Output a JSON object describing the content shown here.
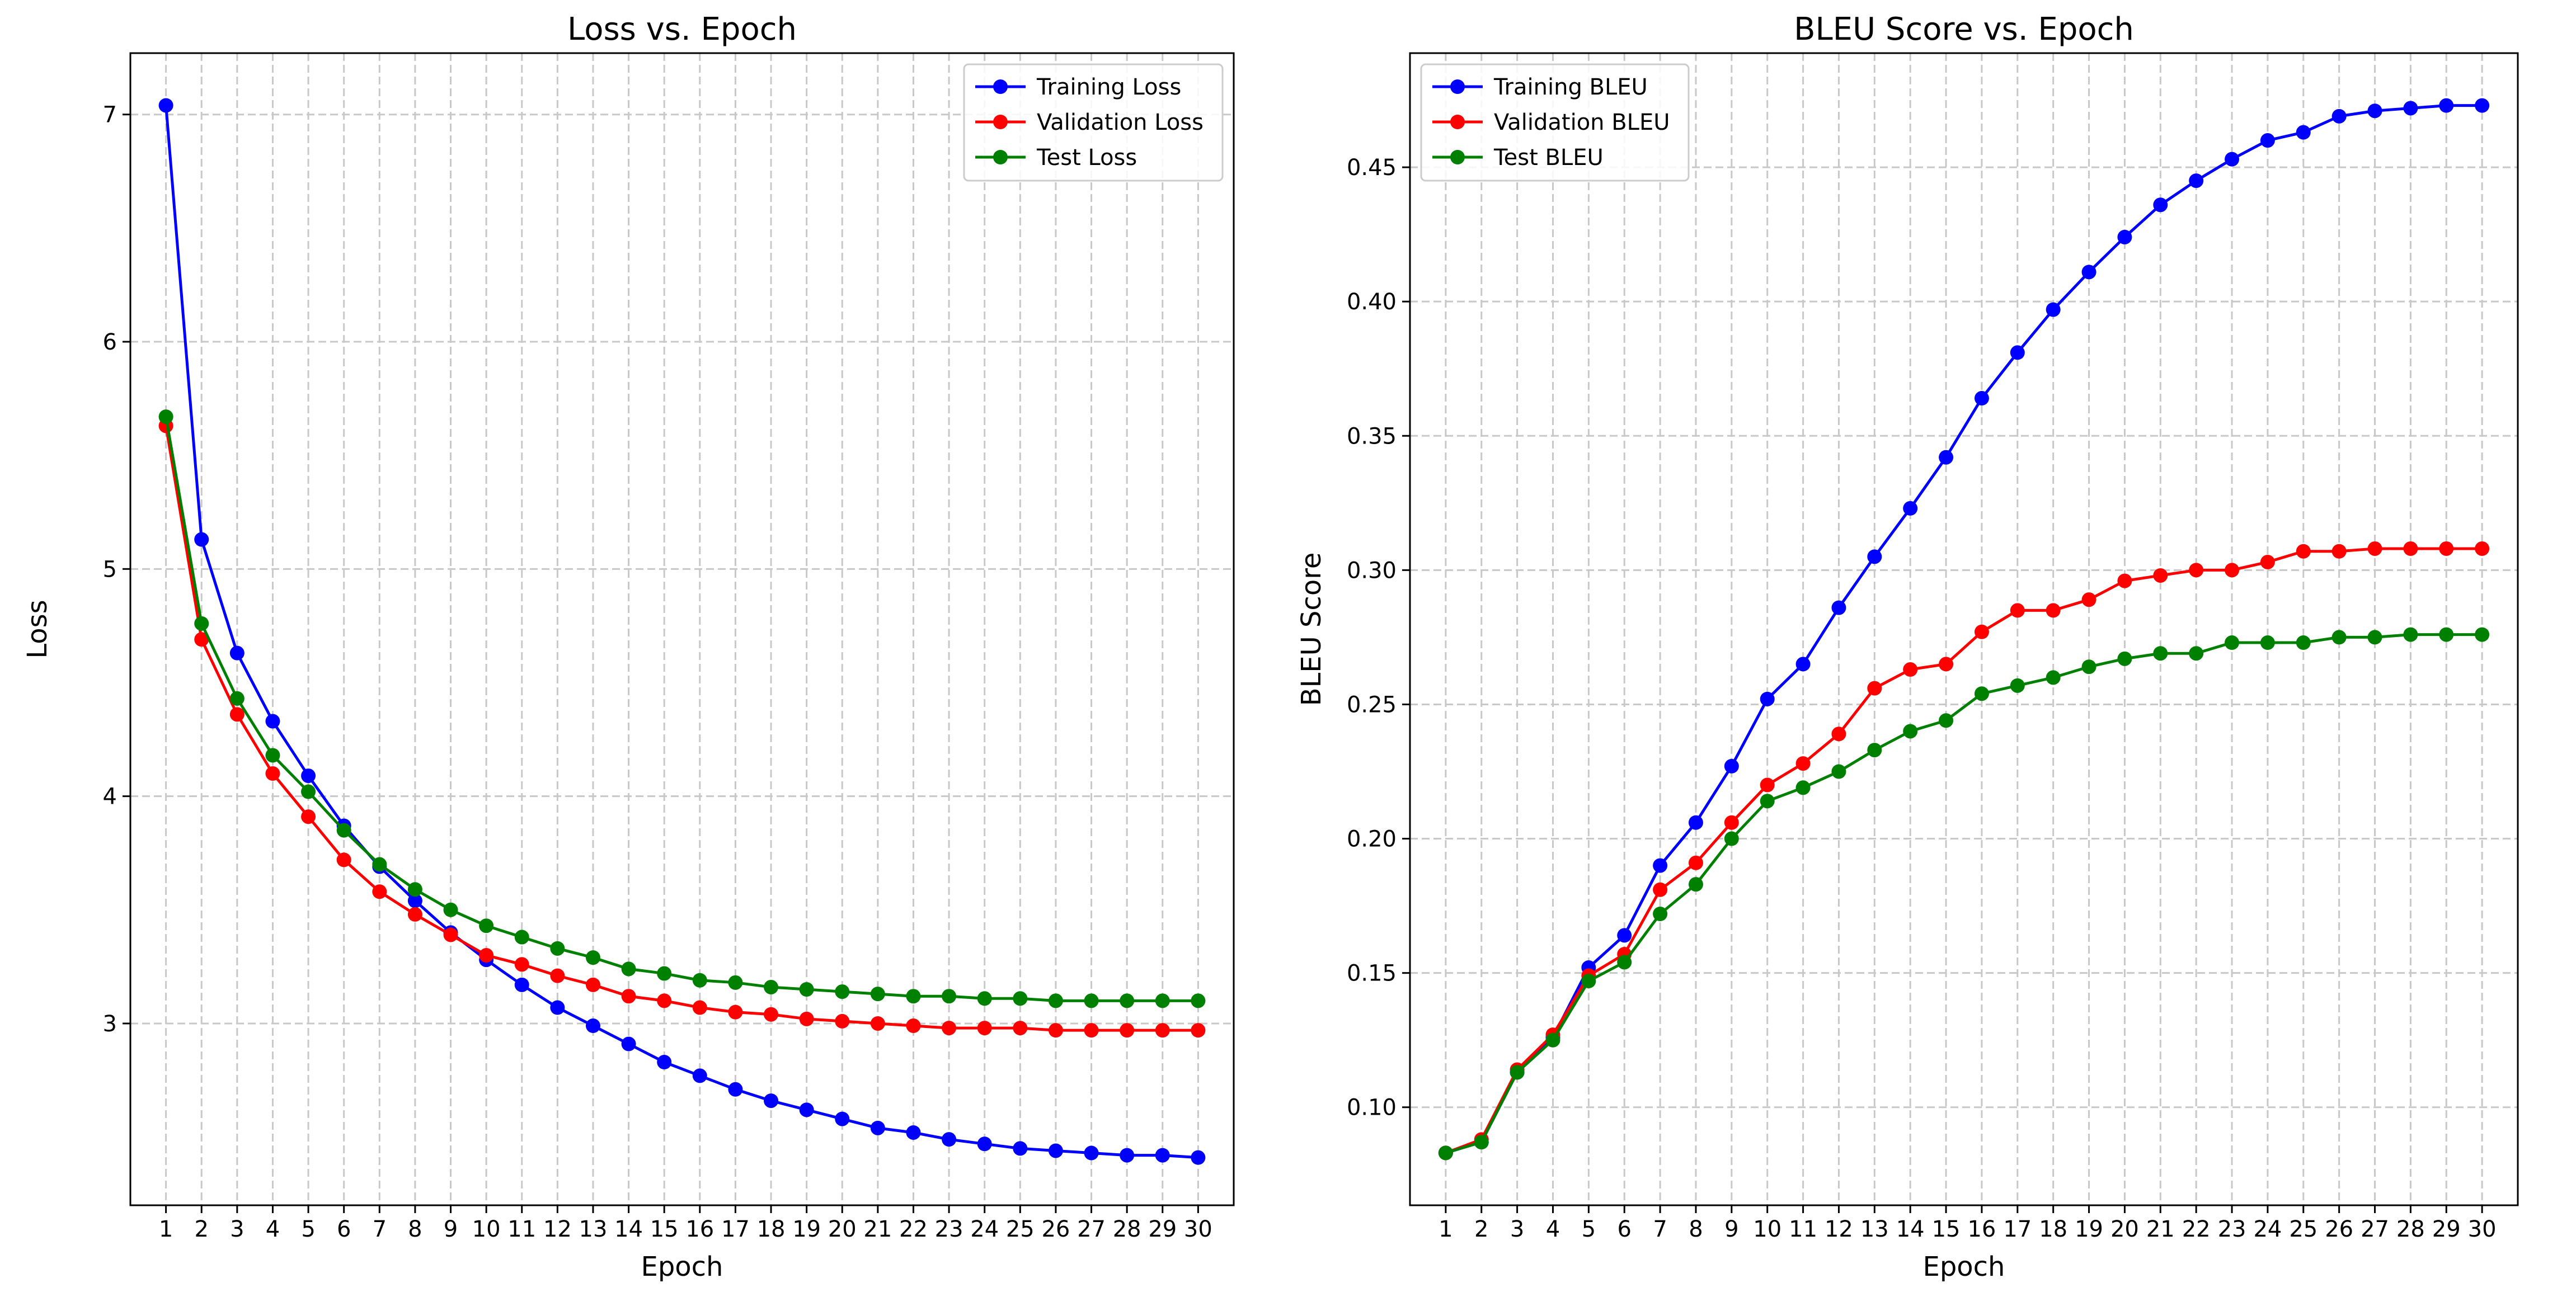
{
  "chart_data": [
    {
      "type": "line",
      "title": "Loss vs. Epoch",
      "xlabel": "Epoch",
      "ylabel": "Loss",
      "x": [
        1,
        2,
        3,
        4,
        5,
        6,
        7,
        8,
        9,
        10,
        11,
        12,
        13,
        14,
        15,
        16,
        17,
        18,
        19,
        20,
        21,
        22,
        23,
        24,
        25,
        26,
        27,
        28,
        29,
        30
      ],
      "xlim": [
        0,
        31
      ],
      "ylim": [
        2.2,
        7.27
      ],
      "yticks": [
        3,
        4,
        5,
        6,
        7
      ],
      "ytick_labels": [
        "3",
        "4",
        "5",
        "6",
        "7"
      ],
      "grid": true,
      "legend": "top-right",
      "series": [
        {
          "name": "Training Loss",
          "color": "#0000ff",
          "values": [
            7.04,
            5.13,
            4.63,
            4.33,
            4.09,
            3.87,
            3.69,
            3.54,
            3.4,
            3.28,
            3.17,
            3.07,
            2.99,
            2.91,
            2.83,
            2.77,
            2.71,
            2.66,
            2.62,
            2.58,
            2.54,
            2.52,
            2.49,
            2.47,
            2.45,
            2.44,
            2.43,
            2.42,
            2.42,
            2.41
          ]
        },
        {
          "name": "Validation Loss",
          "color": "#ff0000",
          "values": [
            5.63,
            4.69,
            4.36,
            4.1,
            3.91,
            3.72,
            3.58,
            3.48,
            3.39,
            3.3,
            3.26,
            3.21,
            3.17,
            3.12,
            3.1,
            3.07,
            3.05,
            3.04,
            3.02,
            3.01,
            3.0,
            2.99,
            2.98,
            2.98,
            2.98,
            2.97,
            2.97,
            2.97,
            2.97,
            2.97
          ]
        },
        {
          "name": "Test Loss",
          "color": "#008000",
          "values": [
            5.67,
            4.76,
            4.43,
            4.18,
            4.02,
            3.85,
            3.7,
            3.59,
            3.5,
            3.43,
            3.38,
            3.33,
            3.29,
            3.24,
            3.22,
            3.19,
            3.18,
            3.16,
            3.15,
            3.14,
            3.13,
            3.12,
            3.12,
            3.11,
            3.11,
            3.1,
            3.1,
            3.1,
            3.1,
            3.1
          ]
        }
      ]
    },
    {
      "type": "line",
      "title": "BLEU Score vs. Epoch",
      "xlabel": "Epoch",
      "ylabel": "BLEU Score",
      "x": [
        1,
        2,
        3,
        4,
        5,
        6,
        7,
        8,
        9,
        10,
        11,
        12,
        13,
        14,
        15,
        16,
        17,
        18,
        19,
        20,
        21,
        22,
        23,
        24,
        25,
        26,
        27,
        28,
        29,
        30
      ],
      "xlim": [
        0,
        31
      ],
      "ylim": [
        0.0635,
        0.4925
      ],
      "yticks": [
        0.1,
        0.15,
        0.2,
        0.25,
        0.3,
        0.35,
        0.4,
        0.45
      ],
      "ytick_labels": [
        "0.10",
        "0.15",
        "0.20",
        "0.25",
        "0.30",
        "0.35",
        "0.40",
        "0.45"
      ],
      "grid": true,
      "legend": "top-left",
      "series": [
        {
          "name": "Training BLEU",
          "color": "#0000ff",
          "values": [
            0.083,
            0.087,
            0.113,
            0.126,
            0.152,
            0.164,
            0.19,
            0.206,
            0.227,
            0.252,
            0.265,
            0.286,
            0.305,
            0.323,
            0.342,
            0.364,
            0.381,
            0.397,
            0.411,
            0.424,
            0.436,
            0.445,
            0.453,
            0.46,
            0.463,
            0.469,
            0.471,
            0.472,
            0.473,
            0.473
          ]
        },
        {
          "name": "Validation BLEU",
          "color": "#ff0000",
          "values": [
            0.083,
            0.088,
            0.114,
            0.127,
            0.149,
            0.157,
            0.181,
            0.191,
            0.206,
            0.22,
            0.228,
            0.239,
            0.256,
            0.263,
            0.265,
            0.277,
            0.285,
            0.285,
            0.289,
            0.296,
            0.298,
            0.3,
            0.3,
            0.303,
            0.307,
            0.307,
            0.308,
            0.308,
            0.308,
            0.308
          ]
        },
        {
          "name": "Test BLEU",
          "color": "#008000",
          "values": [
            0.083,
            0.087,
            0.113,
            0.125,
            0.147,
            0.154,
            0.172,
            0.183,
            0.2,
            0.214,
            0.219,
            0.225,
            0.233,
            0.24,
            0.244,
            0.254,
            0.257,
            0.26,
            0.264,
            0.267,
            0.269,
            0.269,
            0.273,
            0.273,
            0.273,
            0.275,
            0.275,
            0.276,
            0.276,
            0.276
          ]
        }
      ]
    }
  ]
}
